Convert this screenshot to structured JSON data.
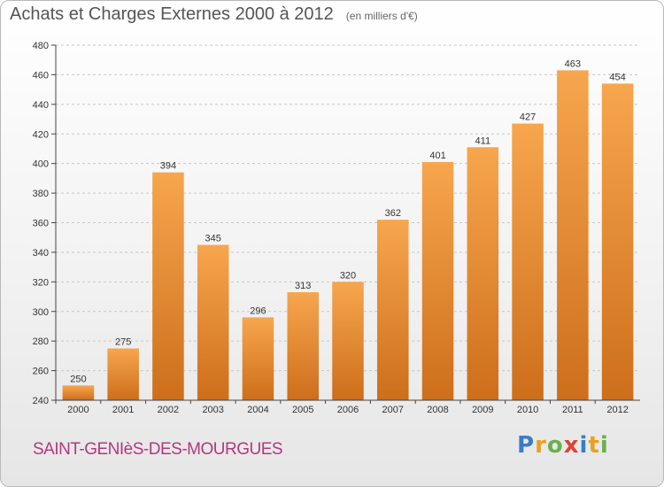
{
  "header": {
    "title": "Achats et Charges Externes 2000 à 2012",
    "unit": "(en milliers d'€)"
  },
  "footer": {
    "commune": "SAINT-GENIèS-DES-MOURGUES",
    "logo_text": "Proxiti",
    "logo_colors": [
      "#3a7cc9",
      "#e8a020",
      "#6ab04c",
      "#d9453a",
      "#3a7cc9",
      "#e8a020",
      "#6ab04c"
    ]
  },
  "colors": {
    "bar_light": "#f7a64e",
    "bar_dark": "#cd6e1b",
    "grid": "#c8c8c8",
    "axis": "#444444"
  },
  "chart_data": {
    "type": "bar",
    "title": "Achats et Charges Externes 2000 à 2012",
    "subtitle": "(en milliers d'€)",
    "categories": [
      "2000",
      "2001",
      "2002",
      "2003",
      "2004",
      "2005",
      "2006",
      "2007",
      "2008",
      "2009",
      "2010",
      "2011",
      "2012"
    ],
    "values": [
      250,
      275,
      394,
      345,
      296,
      313,
      320,
      362,
      401,
      411,
      427,
      463,
      454
    ],
    "ylim": [
      240,
      480
    ],
    "yticks": [
      240,
      260,
      280,
      300,
      320,
      340,
      360,
      380,
      400,
      420,
      440,
      460,
      480
    ],
    "grid": true,
    "legend": "none",
    "xlabel": "",
    "ylabel": ""
  }
}
